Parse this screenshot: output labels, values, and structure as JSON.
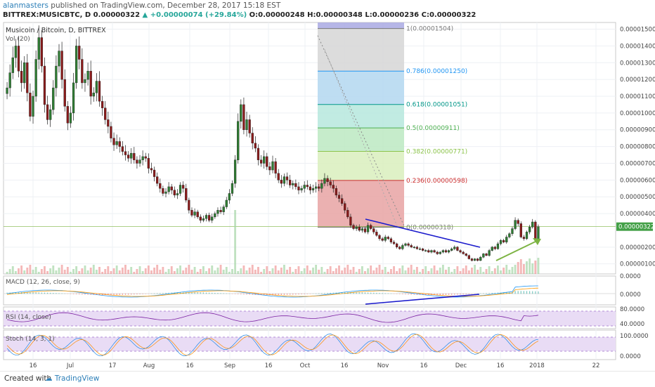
{
  "header": {
    "author": "alanmasters",
    "published_text": "published on TradingView.com, December 28, 2017 15:18 EST",
    "symbol": "BITTREX:MUSICBTC, D",
    "price": "0.00000322",
    "change_arrow": "▲",
    "change": "+0.00000074 (+29.84%)",
    "ohlc": "O:0.00000248 H:0.00000348 L:0.00000236 C:0.00000322"
  },
  "panes": {
    "main_title": "Musicoin / Bitcoin, D, BITTREX",
    "vol_label": "Vol (20)",
    "macd_label": "MACD (12, 26, close, 9)",
    "rsi_label": "RSI (14, close)",
    "stoch_label": "Stoch (14, 3, 1)"
  },
  "footer": {
    "created_with": "Created with",
    "brand": "TradingView"
  },
  "colors": {
    "up": "#26a69a",
    "down": "#8b1a1a",
    "candle_up_fill": "#2e7d32",
    "trendline_blue": "#1a1acc",
    "arrow_green": "#7cb342",
    "price_tag": "#43a047"
  },
  "chart_data": {
    "type": "candlestick",
    "title": "Musicoin / Bitcoin, D, BITTREX",
    "x_tick_labels": [
      "16",
      "Jul",
      "17",
      "Aug",
      "16",
      "Sep",
      "16",
      "Oct",
      "16",
      "Nov",
      "16",
      "Dec",
      "16",
      "2018",
      "22"
    ],
    "y_tick_labels": [
      "0.00001500",
      "0.00001400",
      "0.00001300",
      "0.00001200",
      "0.00001100",
      "0.00001000",
      "0.00000900",
      "0.00000800",
      "0.00000700",
      "0.00000600",
      "0.00000500",
      "0.00000400",
      "0.00000200",
      "0.00000100"
    ],
    "y_ticks": [
      1.5e-05,
      1.4e-05,
      1.3e-05,
      1.2e-05,
      1.1e-05,
      1e-05,
      9e-06,
      8e-06,
      7e-06,
      6e-06,
      5e-06,
      4e-06,
      2e-06,
      1e-06
    ],
    "ylim": [
      4e-07,
      1.54e-05
    ],
    "last_price_label": "0.00000322",
    "last_price": 3.22e-06,
    "closes": [
      1.15e-05,
      1.24e-05,
      1.33e-05,
      1.4e-05,
      1.25e-05,
      1.18e-05,
      1.3e-05,
      1.12e-05,
      9.8e-06,
      1.1e-05,
      1.32e-05,
      1.45e-05,
      1.28e-05,
      1.05e-05,
      9.6e-06,
      1.02e-05,
      1.15e-05,
      1.28e-05,
      1.37e-05,
      1.2e-05,
      1.04e-05,
      9.4e-06,
      1e-05,
      1.18e-05,
      1.4e-05,
      1.32e-05,
      1.18e-05,
      1.2e-05,
      1.25e-05,
      1.1e-05,
      1.12e-05,
      1.19e-05,
      1.07e-05,
      1.03e-05,
      9.6e-06,
      9.2e-06,
      8.5e-06,
      8.1e-06,
      8.3e-06,
      8e-06,
      7.7e-06,
      7.5e-06,
      7.3e-06,
      7.6e-06,
      7.2e-06,
      7e-06,
      7.2e-06,
      7.4e-06,
      7.3e-06,
      6.7e-06,
      6.6e-06,
      6.2e-06,
      5.8e-06,
      5.5e-06,
      5.2e-06,
      5.3e-06,
      5.6e-06,
      5.4e-06,
      5.1e-06,
      5.2e-06,
      5.7e-06,
      5.5e-06,
      4.8e-06,
      4.2e-06,
      3.9e-06,
      4.1e-06,
      3.8e-06,
      3.6e-06,
      3.7e-06,
      3.9e-06,
      3.6e-06,
      3.8e-06,
      4e-06,
      4.2e-06,
      4.1e-06,
      4.4e-06,
      4.8e-06,
      5.2e-06,
      5.8e-06,
      7.2e-06,
      9.5e-06,
      1.05e-05,
      9e-06,
      9.6e-06,
      8.8e-06,
      8.2e-06,
      7.9e-06,
      7.2e-06,
      7e-06,
      7.4e-06,
      6.8e-06,
      6.6e-06,
      7.1e-06,
      6.4e-06,
      6e-06,
      5.8e-06,
      6.2e-06,
      6e-06,
      5.7e-06,
      5.8e-06,
      5.6e-06,
      5.4e-06,
      5.5e-06,
      5.7e-06,
      5.6e-06,
      5.4e-06,
      5.5e-06,
      5.6e-06,
      5.5e-06,
      5.8e-06,
      6.1e-06,
      5.9e-06,
      5.7e-06,
      5.5e-06,
      5.1e-06,
      4.9e-06,
      4.6e-06,
      4.2e-06,
      3.8e-06,
      3.3e-06,
      3.1e-06,
      3.2e-06,
      3e-06,
      3.1e-06,
      2.9e-06,
      3.3e-06,
      3.1e-06,
      2.9e-06,
      2.7e-06,
      2.5e-06,
      2.4e-06,
      2.6e-06,
      2.5e-06,
      2.3e-06,
      2.2e-06,
      2e-06,
      1.9e-06,
      2.1e-06,
      2.2e-06,
      2.1e-06,
      2e-06,
      2e-06,
      1.9e-06,
      1.9e-06,
      1.8e-06,
      1.8e-06,
      1.7e-06,
      1.8e-06,
      1.7e-06,
      1.6e-06,
      1.7e-06,
      1.8e-06,
      1.7e-06,
      1.8e-06,
      1.9e-06,
      2e-06,
      1.8e-06,
      1.7e-06,
      1.6e-06,
      1.5e-06,
      1.3e-06,
      1.2e-06,
      1.3e-06,
      1.2e-06,
      1.4e-06,
      1.6e-06,
      1.5e-06,
      1.8e-06,
      2e-06,
      1.9e-06,
      2.2e-06,
      2.4e-06,
      2.3e-06,
      2.6e-06,
      2.8e-06,
      3.1e-06,
      3.6e-06,
      3.4e-06,
      2.6e-06,
      2.5e-06,
      2.9e-06,
      3.2e-06,
      3.5e-06,
      2.4e-06,
      3.22e-06
    ],
    "fibonacci": {
      "levels": [
        {
          "label": "1(0.00001504)",
          "value": 1.504e-05,
          "color": "#787878",
          "fill": "#d6d6d6"
        },
        {
          "label": "0.786(0.00001250)",
          "value": 1.25e-05,
          "color": "#2196f3",
          "fill": "#b3d7f0"
        },
        {
          "label": "0.618(0.00001051)",
          "value": 1.051e-05,
          "color": "#009688",
          "fill": "#b6e7dd"
        },
        {
          "label": "0.5(0.00000911)",
          "value": 9.11e-06,
          "color": "#4caf50",
          "fill": "#bce9c2"
        },
        {
          "label": "0.382(0.00000771)",
          "value": 7.71e-06,
          "color": "#8bc34a",
          "fill": "#d9efbd"
        },
        {
          "label": "0.236(0.00000598)",
          "value": 5.98e-06,
          "color": "#cc2f2f",
          "fill": "#e8a3a3"
        },
        {
          "label": "0(0.00000318)",
          "value": 3.18e-06,
          "color": "#787878",
          "fill": ""
        }
      ],
      "top_fill": "#a9a9e3",
      "top_value": 1.54e-05
    },
    "macd_tick_labels": [
      "0.0000",
      "0.0000"
    ],
    "rsi_tick_labels": [
      "80.0000",
      "40.0000"
    ],
    "stoch_tick_labels": [
      "100.0000",
      "0.0000"
    ]
  }
}
